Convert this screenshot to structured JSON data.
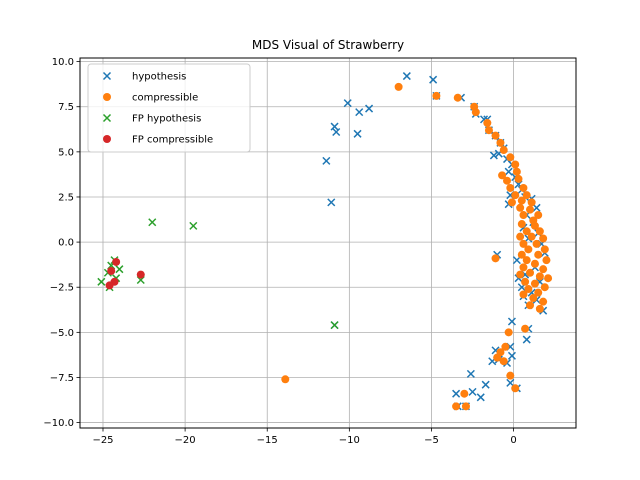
{
  "chart_data": {
    "type": "scatter",
    "title": "MDS Visual of Strawberry",
    "xlabel": "",
    "ylabel": "",
    "xlim": [
      -26.4,
      3.8
    ],
    "ylim": [
      -10.3,
      10.2
    ],
    "xticks": [
      -25,
      -20,
      -15,
      -10,
      -5,
      0
    ],
    "yticks": [
      -10.0,
      -7.5,
      -5.0,
      -2.5,
      0.0,
      2.5,
      5.0,
      7.5,
      10.0
    ],
    "xtick_labels": [
      "−25",
      "−20",
      "−15",
      "−10",
      "−5",
      "0"
    ],
    "ytick_labels": [
      "−10.0",
      "−7.5",
      "−5.0",
      "−2.5",
      "0.0",
      "2.5",
      "5.0",
      "7.5",
      "10.0"
    ],
    "grid": true,
    "legend_position": "upper-left",
    "series": [
      {
        "name": "hypothesis",
        "marker": "x",
        "color": "#1f77b4",
        "points": [
          [
            -6.5,
            9.2
          ],
          [
            -4.9,
            9.0
          ],
          [
            -4.7,
            8.1
          ],
          [
            -3.2,
            8.0
          ],
          [
            -2.4,
            7.5
          ],
          [
            -10.1,
            7.7
          ],
          [
            -9.4,
            7.2
          ],
          [
            -8.8,
            7.4
          ],
          [
            -2.3,
            7.1
          ],
          [
            -1.8,
            6.8
          ],
          [
            -1.6,
            6.8
          ],
          [
            -10.9,
            6.4
          ],
          [
            -10.8,
            6.1
          ],
          [
            -9.5,
            6.0
          ],
          [
            -1.5,
            6.2
          ],
          [
            -1.1,
            5.9
          ],
          [
            -0.8,
            5.5
          ],
          [
            -0.6,
            5.2
          ],
          [
            -11.4,
            4.5
          ],
          [
            -1.2,
            4.8
          ],
          [
            -0.9,
            4.9
          ],
          [
            -0.4,
            4.6
          ],
          [
            -0.1,
            4.3
          ],
          [
            -0.3,
            3.9
          ],
          [
            0.1,
            3.6
          ],
          [
            0.3,
            3.2
          ],
          [
            0.5,
            2.9
          ],
          [
            -0.2,
            2.6
          ],
          [
            0.7,
            2.5
          ],
          [
            -0.3,
            2.1
          ],
          [
            -11.1,
            2.2
          ],
          [
            1.1,
            2.4
          ],
          [
            1.4,
            1.9
          ],
          [
            0.8,
            1.5
          ],
          [
            1.2,
            1.1
          ],
          [
            0.6,
            0.8
          ],
          [
            1.5,
            0.5
          ],
          [
            0.9,
            0.2
          ],
          [
            1.7,
            -0.1
          ],
          [
            -1.0,
            -0.7
          ],
          [
            1.9,
            -0.6
          ],
          [
            0.2,
            -1.0
          ],
          [
            1.3,
            -1.4
          ],
          [
            0.7,
            -1.8
          ],
          [
            0.3,
            -2.0
          ],
          [
            1.6,
            -2.2
          ],
          [
            0.5,
            -2.5
          ],
          [
            1.1,
            -2.8
          ],
          [
            0.6,
            -3.0
          ],
          [
            1.4,
            -3.2
          ],
          [
            0.9,
            -3.5
          ],
          [
            1.8,
            -3.8
          ],
          [
            -0.1,
            -4.4
          ],
          [
            0.9,
            -4.8
          ],
          [
            0.8,
            -5.4
          ],
          [
            -0.2,
            -5.8
          ],
          [
            -0.1,
            -6.3
          ],
          [
            -1.1,
            -6.0
          ],
          [
            -0.9,
            -6.5
          ],
          [
            -1.3,
            -6.6
          ],
          [
            -0.4,
            -6.7
          ],
          [
            -10.9,
            -4.6
          ],
          [
            -2.6,
            -7.3
          ],
          [
            -1.7,
            -7.9
          ],
          [
            -0.2,
            -7.8
          ],
          [
            -2.5,
            -8.3
          ],
          [
            -3.5,
            -8.4
          ],
          [
            -2.0,
            -8.6
          ],
          [
            0.2,
            -8.1
          ],
          [
            -3.4,
            -9.1
          ],
          [
            -2.9,
            -9.1
          ]
        ]
      },
      {
        "name": "compressible",
        "marker": "o",
        "color": "#ff7f0e",
        "points": [
          [
            -7.0,
            8.6
          ],
          [
            -4.7,
            8.1
          ],
          [
            -3.4,
            8.0
          ],
          [
            -2.4,
            7.5
          ],
          [
            -2.3,
            7.2
          ],
          [
            -1.6,
            6.6
          ],
          [
            -1.5,
            6.2
          ],
          [
            -1.1,
            5.9
          ],
          [
            -0.8,
            5.5
          ],
          [
            -0.6,
            5.1
          ],
          [
            -0.2,
            4.7
          ],
          [
            0.1,
            4.3
          ],
          [
            0.2,
            3.9
          ],
          [
            -0.7,
            3.7
          ],
          [
            -0.4,
            3.4
          ],
          [
            0.3,
            3.5
          ],
          [
            -0.2,
            3.0
          ],
          [
            0.6,
            3.0
          ],
          [
            0.1,
            2.6
          ],
          [
            0.8,
            2.6
          ],
          [
            -0.1,
            2.2
          ],
          [
            0.5,
            2.3
          ],
          [
            1.1,
            2.2
          ],
          [
            0.4,
            1.9
          ],
          [
            1.0,
            1.8
          ],
          [
            1.5,
            1.5
          ],
          [
            0.6,
            1.5
          ],
          [
            1.2,
            1.2
          ],
          [
            0.5,
            1.0
          ],
          [
            1.3,
            0.9
          ],
          [
            0.8,
            0.6
          ],
          [
            1.6,
            0.6
          ],
          [
            0.4,
            0.3
          ],
          [
            1.1,
            0.3
          ],
          [
            1.8,
            0.2
          ],
          [
            0.6,
            -0.1
          ],
          [
            1.4,
            -0.1
          ],
          [
            1.9,
            -0.4
          ],
          [
            0.9,
            -0.4
          ],
          [
            0.5,
            -0.7
          ],
          [
            1.5,
            -0.7
          ],
          [
            2.0,
            -1.0
          ],
          [
            0.8,
            -1.0
          ],
          [
            1.3,
            -1.2
          ],
          [
            0.6,
            -1.4
          ],
          [
            1.8,
            -1.5
          ],
          [
            1.0,
            -1.7
          ],
          [
            0.4,
            -1.8
          ],
          [
            1.6,
            -1.9
          ],
          [
            2.1,
            -2.0
          ],
          [
            0.7,
            -2.2
          ],
          [
            1.3,
            -2.3
          ],
          [
            1.9,
            -2.5
          ],
          [
            0.9,
            -2.6
          ],
          [
            1.5,
            -2.8
          ],
          [
            0.6,
            -2.9
          ],
          [
            1.2,
            -3.1
          ],
          [
            1.8,
            -3.3
          ],
          [
            1.0,
            -3.5
          ],
          [
            1.6,
            -3.7
          ],
          [
            0.7,
            -4.8
          ],
          [
            -0.3,
            -5.0
          ],
          [
            -0.5,
            -5.8
          ],
          [
            -0.8,
            -6.1
          ],
          [
            -1.0,
            -6.4
          ],
          [
            -0.6,
            -6.6
          ],
          [
            -1.1,
            -0.9
          ],
          [
            -0.2,
            -7.4
          ],
          [
            0.1,
            -8.1
          ],
          [
            -13.9,
            -7.6
          ],
          [
            -3.0,
            -8.4
          ],
          [
            -3.5,
            -9.1
          ],
          [
            -2.9,
            -9.1
          ]
        ]
      },
      {
        "name": "FP hypothesis",
        "marker": "x",
        "color": "#2ca02c",
        "points": [
          [
            -22.0,
            1.1
          ],
          [
            -19.5,
            0.9
          ],
          [
            -24.3,
            -1.0
          ],
          [
            -24.5,
            -1.3
          ],
          [
            -24.0,
            -1.5
          ],
          [
            -24.7,
            -1.7
          ],
          [
            -24.2,
            -2.0
          ],
          [
            -25.1,
            -2.2
          ],
          [
            -22.7,
            -2.1
          ],
          [
            -24.6,
            -2.5
          ],
          [
            -10.9,
            -4.6
          ]
        ]
      },
      {
        "name": "FP compressible",
        "marker": "o",
        "color": "#d62728",
        "points": [
          [
            -24.2,
            -1.1
          ],
          [
            -24.5,
            -1.6
          ],
          [
            -22.7,
            -1.8
          ],
          [
            -24.3,
            -2.2
          ],
          [
            -24.6,
            -2.4
          ]
        ]
      }
    ]
  }
}
